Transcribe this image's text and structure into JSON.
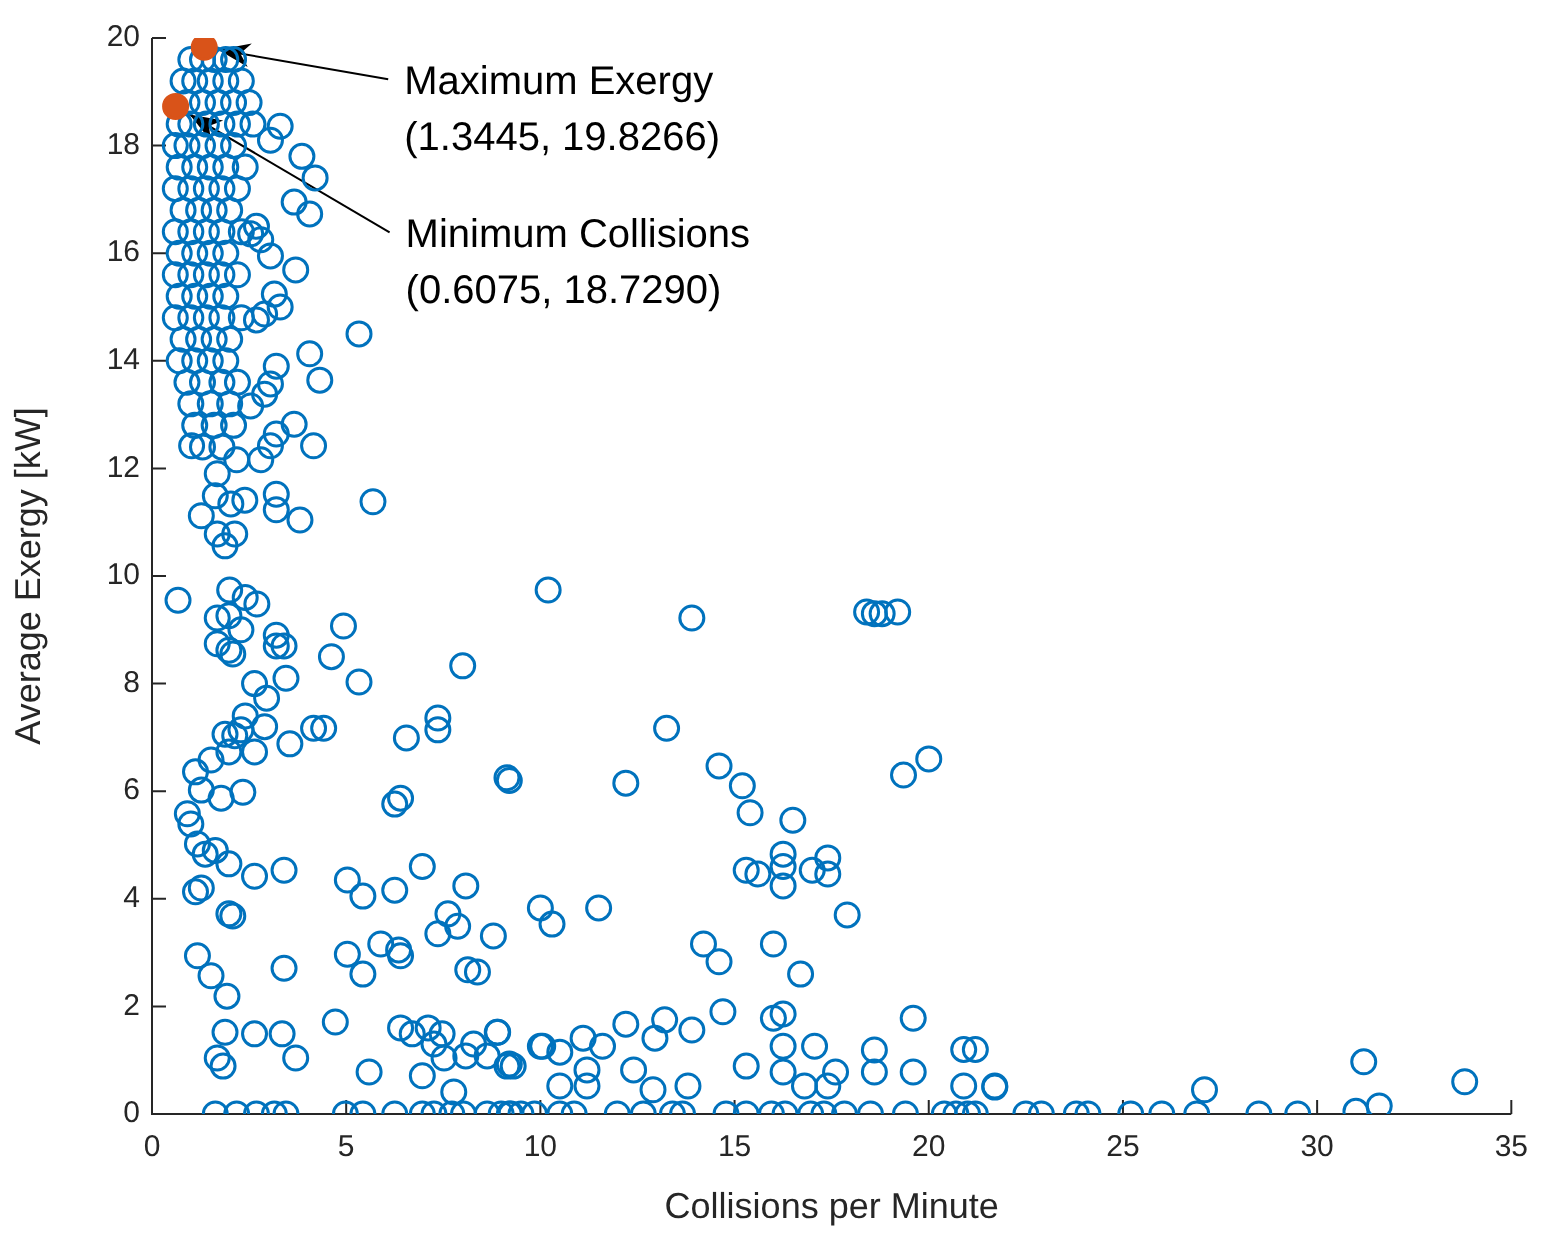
{
  "chart_data": {
    "type": "scatter",
    "xlabel": "Collisions per Minute",
    "ylabel": "Average Exergy [kW]",
    "xlim": [
      0,
      35
    ],
    "xticks": [
      0,
      5,
      10,
      15,
      20,
      25,
      30,
      35
    ],
    "ylim": [
      0,
      20
    ],
    "yticks": [
      0,
      2,
      4,
      6,
      8,
      10,
      12,
      14,
      16,
      18,
      20
    ],
    "grid": false,
    "legend": false,
    "marker": "circle",
    "series": [
      {
        "color": "#0072bd",
        "x": [
          31.2,
          31.6,
          33.8,
          31.0,
          29.5,
          28.5,
          26.9,
          27.1,
          26.0,
          25.2,
          24.1,
          23.8,
          22.5,
          22.9,
          21.7,
          20.9,
          21.2,
          21.0,
          10.2,
          13.9,
          18.4,
          18.6,
          18.8,
          19.2,
          13.25,
          9.2,
          12.2,
          14.6,
          15.2,
          15.4,
          16.5,
          19.35,
          20.0,
          16.25,
          16.25,
          16.25,
          15.3,
          15.6,
          17.0,
          17.4,
          17.4,
          17.9,
          10.0,
          10.3,
          11.5,
          14.2,
          14.6,
          16.0,
          16.7,
          14.7,
          16.0,
          16.25,
          19.6,
          13.9,
          13.2,
          12.2,
          8.9,
          10.06,
          10.5,
          11.1,
          11.6,
          12.95,
          16.25,
          17.06,
          18.6,
          15.3,
          16.25,
          17.6,
          18.6,
          19.6,
          9.2,
          11.2,
          12.4,
          10.5,
          11.2,
          12.9,
          13.8,
          16.8,
          17.4,
          20.9,
          21.7,
          9.2,
          9.85,
          10.5,
          10.87,
          11.98,
          12.65,
          13.4,
          13.66,
          14.78,
          15.3,
          15.95,
          16.3,
          16.96,
          17.3,
          17.83,
          18.5,
          19.4,
          20.4,
          20.7,
          21.2,
          0.67,
          2.0,
          2.4,
          2.7,
          1.68,
          1.98,
          2.29,
          1.68,
          1.98,
          2.08,
          3.2,
          3.2,
          3.4,
          4.93,
          4.62,
          5.33,
          8.0,
          3.45,
          2.64,
          2.95,
          2.4,
          2.29,
          1.88,
          2.13,
          2.9,
          2.64,
          1.98,
          3.55,
          4.16,
          4.42,
          7.36,
          7.36,
          6.55,
          9.14,
          1.52,
          1.12,
          1.27,
          1.78,
          2.34,
          0.91,
          1.0,
          1.17,
          1.37,
          1.63,
          1.98,
          6.25,
          6.4,
          2.64,
          3.4,
          6.96,
          1.12,
          1.27,
          1.98,
          2.08,
          5.03,
          5.43,
          6.25,
          8.08,
          7.62,
          7.87,
          7.36,
          5.89,
          6.35,
          6.4,
          8.79,
          8.13,
          8.38,
          5.03,
          5.43,
          1.17,
          1.52,
          1.93,
          3.4,
          1.88,
          2.64,
          3.35,
          4.72,
          3.7,
          1.68,
          1.83,
          5.59,
          6.96,
          7.77,
          6.4,
          6.7,
          7.11,
          7.47,
          7.26,
          7.52,
          8.08,
          8.28,
          8.63,
          8.89,
          9.14,
          9.3,
          10.0,
          1.63,
          2.18,
          2.69,
          3.15,
          3.45,
          4.98,
          5.43,
          6.25,
          6.96,
          7.26,
          7.72,
          8.02,
          8.63,
          8.99,
          9.24,
          9.5,
          3.3,
          3.05,
          3.86,
          4.2,
          3.66,
          4.06,
          2.69,
          2.8,
          3.05,
          3.7,
          2.54,
          3.15,
          3.3,
          2.9,
          2.69,
          5.33,
          4.06,
          4.32,
          3.2,
          3.05,
          2.9,
          2.54,
          3.66,
          4.16,
          3.2,
          3.05,
          2.8,
          2.18,
          1.68,
          1.02,
          5.69,
          3.2,
          3.2,
          3.81,
          1.63,
          2.03,
          2.39,
          1.27,
          1.68,
          2.13,
          1.88,
          1.0,
          1.3,
          1.6,
          1.9,
          2.1,
          0.8,
          1.1,
          1.5,
          1.9,
          2.3,
          0.9,
          1.3,
          1.7,
          2.1,
          2.5,
          0.7,
          1.0,
          1.4,
          1.8,
          2.2,
          2.6,
          0.6,
          0.9,
          1.3,
          1.7,
          2.1,
          0.7,
          1.1,
          1.5,
          1.9,
          2.4,
          0.6,
          1.0,
          1.4,
          1.8,
          2.2,
          0.8,
          1.2,
          1.6,
          2.0,
          0.6,
          1.0,
          1.4,
          1.8,
          2.3,
          0.7,
          1.1,
          1.5,
          1.9,
          0.6,
          1.0,
          1.4,
          1.8,
          2.2,
          0.7,
          1.1,
          1.5,
          1.9,
          0.6,
          1.0,
          1.4,
          1.8,
          2.3,
          0.8,
          1.2,
          1.6,
          2.0,
          0.7,
          1.1,
          1.5,
          1.9,
          0.9,
          1.3,
          1.8,
          2.2,
          1.0,
          1.5,
          2.0,
          1.1,
          1.6,
          2.1,
          1.3,
          1.8
        ],
        "values": [
          0.97,
          0.15,
          0.6,
          0.05,
          0,
          0,
          0,
          0.45,
          0,
          0,
          0,
          0,
          0,
          0,
          0.5,
          1.2,
          1.2,
          0,
          9.74,
          9.22,
          9.33,
          9.3,
          9.3,
          9.33,
          7.17,
          6.2,
          6.15,
          6.47,
          6.1,
          5.6,
          5.46,
          6.3,
          6.6,
          4.83,
          4.6,
          4.24,
          4.53,
          4.46,
          4.53,
          4.76,
          4.46,
          3.7,
          3.83,
          3.53,
          3.83,
          3.16,
          2.83,
          3.16,
          2.6,
          1.9,
          1.78,
          1.86,
          1.78,
          1.56,
          1.75,
          1.67,
          1.52,
          1.26,
          1.15,
          1.41,
          1.26,
          1.41,
          1.26,
          1.26,
          1.19,
          0.89,
          0.78,
          0.78,
          0.78,
          0.78,
          0.93,
          0.82,
          0.82,
          0.52,
          0.52,
          0.45,
          0.52,
          0.52,
          0.52,
          0.52,
          0.52,
          0,
          0,
          0,
          0,
          0,
          0,
          0,
          0,
          0,
          0,
          0,
          0,
          0,
          0,
          0,
          0,
          0,
          0,
          0,
          0,
          9.55,
          9.74,
          9.6,
          9.48,
          9.22,
          9.26,
          9.0,
          8.74,
          8.62,
          8.55,
          8.9,
          8.7,
          8.7,
          9.07,
          8.5,
          8.03,
          8.33,
          8.1,
          8.0,
          7.73,
          7.4,
          7.14,
          7.06,
          7.03,
          7.2,
          6.73,
          6.73,
          6.88,
          7.17,
          7.17,
          7.36,
          7.14,
          6.99,
          6.25,
          6.58,
          6.36,
          6.02,
          5.87,
          5.98,
          5.58,
          5.39,
          5.02,
          4.83,
          4.9,
          4.65,
          5.76,
          5.87,
          4.42,
          4.53,
          4.6,
          4.13,
          4.2,
          3.72,
          3.68,
          4.35,
          4.05,
          4.16,
          4.24,
          3.72,
          3.49,
          3.35,
          3.16,
          3.05,
          2.94,
          3.31,
          2.68,
          2.64,
          2.97,
          2.6,
          2.94,
          2.57,
          2.19,
          2.71,
          1.52,
          1.49,
          1.49,
          1.71,
          1.04,
          1.04,
          0.89,
          0.78,
          0.71,
          0.41,
          1.6,
          1.49,
          1.6,
          1.49,
          1.3,
          1.04,
          1.08,
          1.3,
          1.08,
          1.52,
          0.89,
          0.89,
          1.26,
          0,
          0,
          0,
          0,
          0,
          0,
          0,
          0,
          0,
          0,
          0,
          0,
          0,
          0,
          0,
          0,
          18.36,
          18.1,
          17.8,
          17.4,
          16.95,
          16.73,
          16.5,
          16.25,
          15.95,
          15.69,
          16.36,
          15.24,
          15.0,
          14.87,
          14.76,
          14.5,
          14.13,
          13.64,
          13.9,
          13.57,
          13.38,
          13.16,
          12.82,
          12.42,
          12.64,
          12.42,
          12.16,
          12.16,
          11.9,
          12.42,
          11.38,
          11.52,
          11.23,
          11.04,
          11.49,
          11.34,
          11.41,
          11.12,
          10.78,
          10.78,
          10.56,
          19.6,
          19.6,
          19.6,
          19.6,
          19.6,
          19.2,
          19.2,
          19.2,
          19.2,
          19.2,
          18.8,
          18.8,
          18.8,
          18.8,
          18.8,
          18.4,
          18.4,
          18.4,
          18.4,
          18.4,
          18.4,
          18.0,
          18.0,
          18.0,
          18.0,
          18.0,
          17.6,
          17.6,
          17.6,
          17.6,
          17.6,
          17.2,
          17.2,
          17.2,
          17.2,
          17.2,
          16.8,
          16.8,
          16.8,
          16.8,
          16.4,
          16.4,
          16.4,
          16.4,
          16.4,
          16.0,
          16.0,
          16.0,
          16.0,
          15.6,
          15.6,
          15.6,
          15.6,
          15.6,
          15.2,
          15.2,
          15.2,
          15.2,
          14.8,
          14.8,
          14.8,
          14.8,
          14.8,
          14.4,
          14.4,
          14.4,
          14.4,
          14.0,
          14.0,
          14.0,
          14.0,
          13.6,
          13.6,
          13.6,
          13.6,
          13.2,
          13.2,
          13.2,
          12.8,
          12.8,
          12.8,
          12.4,
          12.4
        ]
      },
      {
        "color": "#d95319",
        "x": [
          1.3445,
          0.6075
        ],
        "values": [
          19.8266,
          18.729
        ]
      }
    ],
    "annotations": [
      {
        "text": "Maximum Exergy\n(1.3445, 19.8266)",
        "x": 1.3445,
        "y": 19.8266
      },
      {
        "text": "Minimum Collisions\n(0.6075, 18.7290)",
        "x": 0.6075,
        "y": 18.729
      }
    ]
  }
}
